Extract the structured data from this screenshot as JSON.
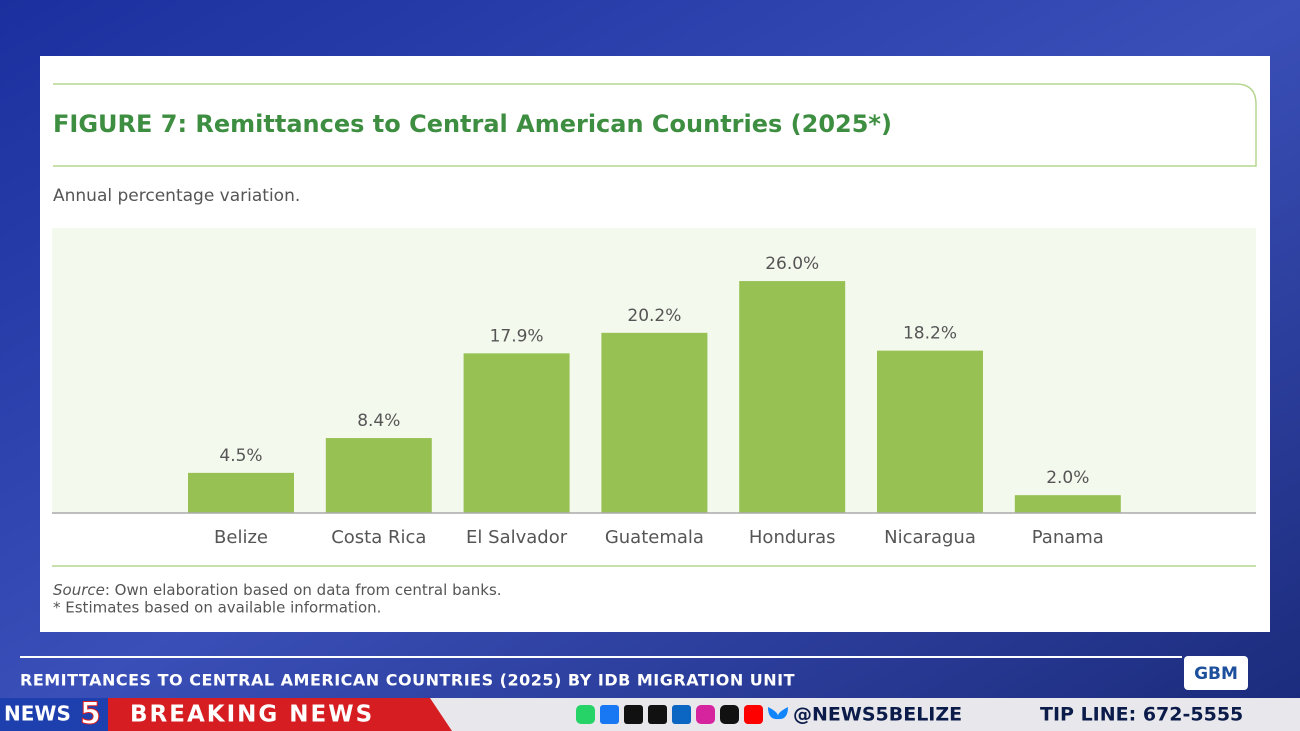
{
  "chart_data": {
    "type": "bar",
    "title": "FIGURE 7: Remittances to Central American Countries (2025*)",
    "subtitle": "Annual percentage variation.",
    "categories": [
      "Belize",
      "Costa Rica",
      "El Salvador",
      "Guatemala",
      "Honduras",
      "Nicaragua",
      "Panama"
    ],
    "values": [
      4.5,
      8.4,
      17.9,
      20.2,
      26.0,
      18.2,
      2.0
    ],
    "value_labels": [
      "4.5%",
      "8.4%",
      "17.9%",
      "20.2%",
      "26.0%",
      "18.2%",
      "2.0%"
    ],
    "color": "#97c153",
    "source_label": "Source",
    "source": ": Own elaboration based on data from central banks.",
    "note": "* Estimates based on available information."
  },
  "lower_third": {
    "headline": "REMITTANCES TO CENTRAL AMERICAN COUNTRIES (2025) BY IDB MIGRATION UNIT",
    "logo_text": "NEWS",
    "logo_number": "5",
    "banner": "BREAKING NEWS",
    "handle": "@NEWS5BELIZE",
    "tip_line": "TIP LINE: 672-5555",
    "sponsor": "GBM"
  }
}
